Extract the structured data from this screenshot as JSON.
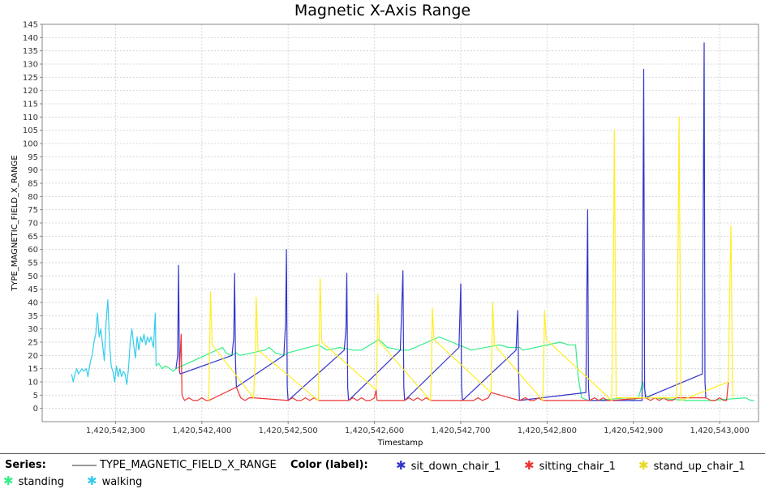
{
  "chart_data": {
    "type": "line",
    "title": "Magnetic X-Axis Range",
    "xlabel": "Timestamp",
    "ylabel": "TYPE_MAGNETIC_FIELD_X_RANGE",
    "xlim": [
      1420542215,
      1420543045
    ],
    "ylim": [
      -5,
      145
    ],
    "x_ticks": [
      "1,420,542,300",
      "1,420,542,400",
      "1,420,542,500",
      "1,420,542,600",
      "1,420,542,700",
      "1,420,542,800",
      "1,420,542,900",
      "1,420,543,000"
    ],
    "y_ticks": [
      "0",
      "5",
      "10",
      "15",
      "20",
      "25",
      "30",
      "35",
      "40",
      "45",
      "50",
      "55",
      "60",
      "65",
      "70",
      "75",
      "80",
      "85",
      "90",
      "95",
      "100",
      "105",
      "110",
      "115",
      "120",
      "125",
      "130",
      "135",
      "140",
      "145"
    ],
    "grid": true,
    "series": [
      {
        "label": "walking",
        "color": "#33ccee",
        "points": [
          [
            1420542249,
            13
          ],
          [
            1420542251,
            10
          ],
          [
            1420542253,
            13
          ],
          [
            1420542255,
            15
          ],
          [
            1420542257,
            13
          ],
          [
            1420542259,
            14
          ],
          [
            1420542261,
            15
          ],
          [
            1420542263,
            14
          ],
          [
            1420542266,
            15
          ],
          [
            1420542268,
            12
          ],
          [
            1420542271,
            18
          ],
          [
            1420542273,
            20
          ],
          [
            1420542275,
            25
          ],
          [
            1420542277,
            28
          ],
          [
            1420542279,
            36
          ],
          [
            1420542281,
            27
          ],
          [
            1420542283,
            30
          ],
          [
            1420542285,
            24
          ],
          [
            1420542287,
            18
          ],
          [
            1420542289,
            32
          ],
          [
            1420542291,
            41
          ],
          [
            1420542293,
            25
          ],
          [
            1420542295,
            16
          ],
          [
            1420542297,
            14
          ],
          [
            1420542299,
            10
          ],
          [
            1420542301,
            16
          ],
          [
            1420542303,
            12
          ],
          [
            1420542305,
            15
          ],
          [
            1420542307,
            12
          ],
          [
            1420542309,
            14
          ],
          [
            1420542311,
            13
          ],
          [
            1420542313,
            9
          ],
          [
            1420542315,
            15
          ],
          [
            1420542317,
            25
          ],
          [
            1420542319,
            30
          ],
          [
            1420542321,
            24
          ],
          [
            1420542323,
            19
          ],
          [
            1420542325,
            27
          ],
          [
            1420542327,
            22
          ],
          [
            1420542329,
            27
          ],
          [
            1420542331,
            25
          ],
          [
            1420542333,
            28
          ],
          [
            1420542335,
            24
          ],
          [
            1420542337,
            27
          ],
          [
            1420542339,
            25
          ],
          [
            1420542341,
            27
          ],
          [
            1420542344,
            23
          ],
          [
            1420542346,
            36
          ],
          [
            1420542347,
            16
          ]
        ]
      },
      {
        "label": "standing",
        "color": "#33ee88",
        "points": [
          [
            1420542347,
            16
          ],
          [
            1420542350,
            17
          ],
          [
            1420542354,
            15
          ],
          [
            1420542358,
            16
          ],
          [
            1420542363,
            15
          ],
          [
            1420542367,
            14
          ],
          [
            1420542370,
            15
          ],
          [
            1420542424,
            23
          ],
          [
            1420542428,
            21
          ],
          [
            1420542434,
            20
          ],
          [
            1420542440,
            21
          ],
          [
            1420542444,
            20
          ],
          [
            1420542473,
            22
          ],
          [
            1420542478,
            23
          ],
          [
            1420542485,
            21
          ],
          [
            1420542495,
            20
          ],
          [
            1420542500,
            21
          ],
          [
            1420542535,
            24
          ],
          [
            1420542545,
            22
          ],
          [
            1420542560,
            23
          ],
          [
            1420542575,
            22
          ],
          [
            1420542585,
            22
          ],
          [
            1420542605,
            26
          ],
          [
            1420542615,
            23
          ],
          [
            1420542630,
            22
          ],
          [
            1420542640,
            22
          ],
          [
            1420542675,
            27
          ],
          [
            1420542690,
            25
          ],
          [
            1420542705,
            23
          ],
          [
            1420542712,
            22
          ],
          [
            1420542745,
            24
          ],
          [
            1420542755,
            23
          ],
          [
            1420542768,
            23
          ],
          [
            1420542772,
            22
          ],
          [
            1420542815,
            25
          ],
          [
            1420542825,
            24
          ],
          [
            1420542833,
            24
          ],
          [
            1420542836,
            12
          ],
          [
            1420542840,
            4
          ],
          [
            1420542848,
            3
          ],
          [
            1420542855,
            3
          ],
          [
            1420542893,
            4
          ],
          [
            1420542898,
            3
          ],
          [
            1420542906,
            4
          ],
          [
            1420542911,
            10
          ],
          [
            1420542915,
            4
          ],
          [
            1420542921,
            4
          ],
          [
            1420542962,
            3
          ],
          [
            1420542966,
            3
          ],
          [
            1420542970,
            3
          ],
          [
            1420542980,
            3
          ],
          [
            1420542990,
            3
          ],
          [
            1420543030,
            4
          ],
          [
            1420543036,
            3
          ],
          [
            1420543040,
            3
          ]
        ]
      },
      {
        "label": "sit_down_chair_1",
        "color": "#3333cc",
        "points": [
          [
            1420542370,
            15
          ],
          [
            1420542372,
            20
          ],
          [
            1420542373,
            54
          ],
          [
            1420542374,
            14
          ],
          [
            1420542375,
            13
          ],
          [
            1420542435,
            20
          ],
          [
            1420542437,
            27
          ],
          [
            1420542438,
            51
          ],
          [
            1420542439,
            18
          ],
          [
            1420542440,
            8
          ],
          [
            1420542495,
            20
          ],
          [
            1420542497,
            32
          ],
          [
            1420542498,
            60
          ],
          [
            1420542499,
            8
          ],
          [
            1420542500,
            3
          ],
          [
            1420542565,
            22
          ],
          [
            1420542567,
            30
          ],
          [
            1420542568,
            51
          ],
          [
            1420542569,
            8
          ],
          [
            1420542570,
            3
          ],
          [
            1420542630,
            22
          ],
          [
            1420542633,
            52
          ],
          [
            1420542634,
            8
          ],
          [
            1420542635,
            3
          ],
          [
            1420542698,
            23
          ],
          [
            1420542700,
            47
          ],
          [
            1420542701,
            8
          ],
          [
            1420542702,
            3
          ],
          [
            1420542764,
            22
          ],
          [
            1420542766,
            37
          ],
          [
            1420542767,
            15
          ],
          [
            1420542768,
            3
          ],
          [
            1420542845,
            6
          ],
          [
            1420542847,
            75
          ],
          [
            1420542848,
            8
          ],
          [
            1420542849,
            3
          ],
          [
            1420542910,
            3
          ],
          [
            1420542912,
            128
          ],
          [
            1420542913,
            8
          ],
          [
            1420542914,
            4
          ],
          [
            1420542980,
            13
          ],
          [
            1420542982,
            138
          ],
          [
            1420542983,
            10
          ],
          [
            1420542984,
            4
          ]
        ]
      },
      {
        "label": "sitting_chair_1",
        "color": "#ee3333",
        "points": [
          [
            1420542374,
            14
          ],
          [
            1420542376,
            28
          ],
          [
            1420542377,
            5
          ],
          [
            1420542380,
            3
          ],
          [
            1420542385,
            4
          ],
          [
            1420542390,
            3
          ],
          [
            1420542395,
            3
          ],
          [
            1420542400,
            4
          ],
          [
            1420542405,
            3
          ],
          [
            1420542408,
            3
          ],
          [
            1420542440,
            8
          ],
          [
            1420542445,
            4
          ],
          [
            1420542450,
            3
          ],
          [
            1420542455,
            4
          ],
          [
            1420542460,
            4
          ],
          [
            1420542500,
            3
          ],
          [
            1420542505,
            4
          ],
          [
            1420542510,
            3
          ],
          [
            1420542515,
            3
          ],
          [
            1420542520,
            4
          ],
          [
            1420542525,
            3
          ],
          [
            1420542530,
            4
          ],
          [
            1420542535,
            3
          ],
          [
            1420542570,
            3
          ],
          [
            1420542575,
            4
          ],
          [
            1420542580,
            3
          ],
          [
            1420542585,
            4
          ],
          [
            1420542590,
            3
          ],
          [
            1420542595,
            3
          ],
          [
            1420542600,
            4
          ],
          [
            1420542602,
            7
          ],
          [
            1420542603,
            3
          ],
          [
            1420542635,
            3
          ],
          [
            1420542640,
            4
          ],
          [
            1420542645,
            3
          ],
          [
            1420542650,
            4
          ],
          [
            1420542655,
            3
          ],
          [
            1420542660,
            4
          ],
          [
            1420542665,
            3
          ],
          [
            1420542702,
            3
          ],
          [
            1420542708,
            3
          ],
          [
            1420542715,
            3
          ],
          [
            1420542720,
            4
          ],
          [
            1420542725,
            3
          ],
          [
            1420542732,
            4
          ],
          [
            1420542735,
            6
          ],
          [
            1420542768,
            3
          ],
          [
            1420542775,
            4
          ],
          [
            1420542780,
            3
          ],
          [
            1420542785,
            3
          ],
          [
            1420542790,
            4
          ],
          [
            1420542795,
            3
          ],
          [
            1420542849,
            3
          ],
          [
            1420542855,
            4
          ],
          [
            1420542860,
            3
          ],
          [
            1420542865,
            4
          ],
          [
            1420542870,
            3
          ],
          [
            1420542875,
            3
          ],
          [
            1420542914,
            4
          ],
          [
            1420542920,
            3
          ],
          [
            1420542925,
            4
          ],
          [
            1420542930,
            3
          ],
          [
            1420542935,
            4
          ],
          [
            1420542940,
            3
          ],
          [
            1420542945,
            3
          ],
          [
            1420542950,
            4
          ],
          [
            1420542984,
            4
          ],
          [
            1420542990,
            3
          ],
          [
            1420542995,
            3
          ],
          [
            1420543000,
            4
          ],
          [
            1420543005,
            3
          ],
          [
            1420543008,
            3
          ],
          [
            1420543010,
            10
          ]
        ]
      },
      {
        "label": "stand_up_chair_1",
        "color": "#ffee22",
        "points": [
          [
            1420542408,
            3
          ],
          [
            1420542409,
            20
          ],
          [
            1420542410,
            44
          ],
          [
            1420542412,
            24
          ],
          [
            1420542460,
            4
          ],
          [
            1420542462,
            20
          ],
          [
            1420542463,
            42
          ],
          [
            1420542465,
            22
          ],
          [
            1420542535,
            3
          ],
          [
            1420542536,
            25
          ],
          [
            1420542537,
            49
          ],
          [
            1420542539,
            25
          ],
          [
            1420542602,
            7
          ],
          [
            1420542603,
            20
          ],
          [
            1420542604,
            43
          ],
          [
            1420542606,
            25
          ],
          [
            1420542665,
            3
          ],
          [
            1420542666,
            15
          ],
          [
            1420542667,
            38
          ],
          [
            1420542669,
            26
          ],
          [
            1420542735,
            6
          ],
          [
            1420542736,
            20
          ],
          [
            1420542737,
            40
          ],
          [
            1420542739,
            24
          ],
          [
            1420542795,
            3
          ],
          [
            1420542796,
            15
          ],
          [
            1420542797,
            37
          ],
          [
            1420542799,
            26
          ],
          [
            1420542875,
            3
          ],
          [
            1420542877,
            60
          ],
          [
            1420542878,
            105
          ],
          [
            1420542880,
            4
          ],
          [
            1420542950,
            4
          ],
          [
            1420542952,
            70
          ],
          [
            1420542953,
            110
          ],
          [
            1420542955,
            3
          ],
          [
            1420543010,
            10
          ],
          [
            1420543012,
            50
          ],
          [
            1420543013,
            69
          ],
          [
            1420543015,
            4
          ]
        ]
      }
    ]
  },
  "legend": {
    "series_heading": "Series:",
    "series_name": "TYPE_MAGNETIC_FIELD_X_RANGE",
    "color_heading": "Color (label):",
    "items": [
      {
        "label": "sit_down_chair_1",
        "color": "#3333cc"
      },
      {
        "label": "sitting_chair_1",
        "color": "#ee3333"
      },
      {
        "label": "stand_up_chair_1",
        "color": "#ffee22"
      },
      {
        "label": "standing",
        "color": "#33ee88"
      },
      {
        "label": "walking",
        "color": "#33ccee"
      }
    ]
  }
}
